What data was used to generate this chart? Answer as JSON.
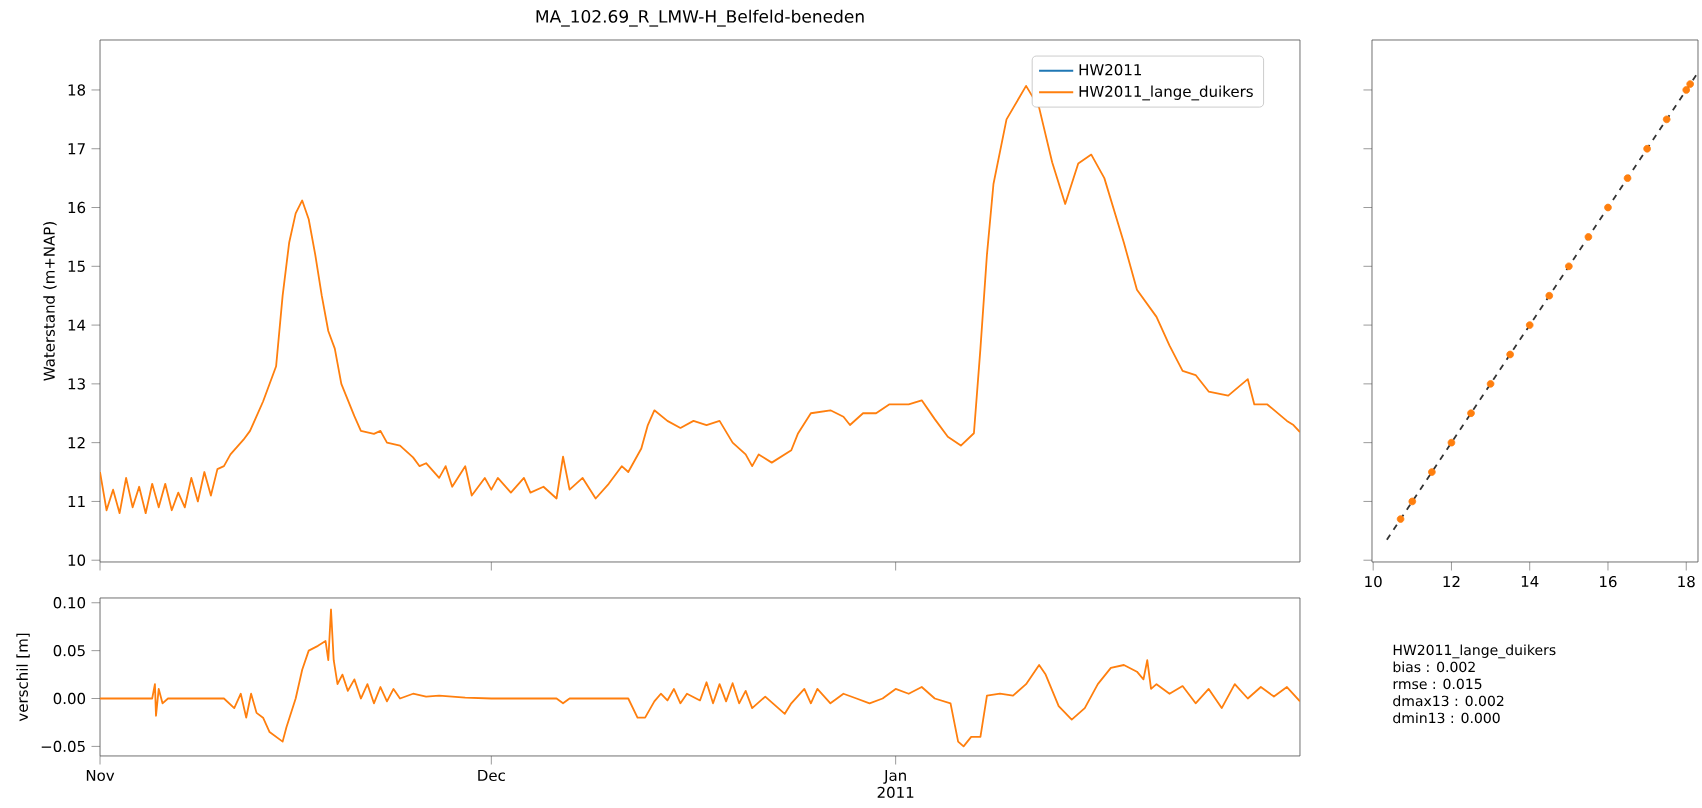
{
  "chart_data": [
    {
      "type": "line",
      "title": "MA_102.69_R_LMW-H_Belfeld-beneden",
      "ylabel": "Waterstand (m+NAP)",
      "legend": "top right",
      "tick_labels": "y",
      "xlim": [
        "2010-11-01",
        "2011-02-01"
      ],
      "ylim": [
        9.97,
        18.85
      ],
      "xticks": [
        {
          "value": "2010-11-01",
          "label": null
        },
        {
          "value": "2010-12-01",
          "label": null
        },
        {
          "value": "2011-01-01",
          "label": null
        }
      ],
      "yticks": [
        10,
        11,
        12,
        13,
        14,
        15,
        16,
        17,
        18
      ],
      "x": [
        "2010-11-01",
        "2010-11-01T12:00",
        "2010-11-02",
        "2010-11-02T12:00",
        "2010-11-03",
        "2010-11-03T12:00",
        "2010-11-04",
        "2010-11-04T12:00",
        "2010-11-05",
        "2010-11-05T12:00",
        "2010-11-06",
        "2010-11-06T12:00",
        "2010-11-07",
        "2010-11-07T12:00",
        "2010-11-08",
        "2010-11-08T12:00",
        "2010-11-09",
        "2010-11-09T12:00",
        "2010-11-10",
        "2010-11-10T12:00",
        "2010-11-11",
        "2010-11-12",
        "2010-11-12T12:00",
        "2010-11-13T12:00",
        "2010-11-14T12:00",
        "2010-11-15",
        "2010-11-15T12:00",
        "2010-11-16",
        "2010-11-16T12:00",
        "2010-11-17",
        "2010-11-17T12:00",
        "2010-11-18",
        "2010-11-18T12:00",
        "2010-11-19",
        "2010-11-19T12:00",
        "2010-11-20T12:00",
        "2010-11-21",
        "2010-11-22",
        "2010-11-22T12:00",
        "2010-11-23",
        "2010-11-24",
        "2010-11-25",
        "2010-11-25T12:00",
        "2010-11-26",
        "2010-11-27",
        "2010-11-27T12:00",
        "2010-11-28",
        "2010-11-29",
        "2010-11-29T12:00",
        "2010-11-30T12:00",
        "2010-12-01",
        "2010-12-01T12:00",
        "2010-12-02T12:00",
        "2010-12-03T12:00",
        "2010-12-04",
        "2010-12-05",
        "2010-12-06",
        "2010-12-06T12:00",
        "2010-12-07",
        "2010-12-08",
        "2010-12-09",
        "2010-12-10",
        "2010-12-11",
        "2010-12-11T12:00",
        "2010-12-12T12:00",
        "2010-12-13",
        "2010-12-13T12:00",
        "2010-12-14T12:00",
        "2010-12-15T12:00",
        "2010-12-16T12:00",
        "2010-12-17T12:00",
        "2010-12-18T12:00",
        "2010-12-19T12:00",
        "2010-12-20T12:00",
        "2010-12-21",
        "2010-12-21T12:00",
        "2010-12-22T12:00",
        "2010-12-24",
        "2010-12-24T12:00",
        "2010-12-25T12:00",
        "2010-12-27",
        "2010-12-28",
        "2010-12-28T12:00",
        "2010-12-29T12:00",
        "2010-12-30T12:00",
        "2010-12-31T12:00",
        "2011-01-02",
        "2011-01-03",
        "2011-01-04",
        "2011-01-05",
        "2011-01-06",
        "2011-01-07",
        "2011-01-07T12:00",
        "2011-01-08",
        "2011-01-08T12:00",
        "2011-01-09T12:00",
        "2011-01-11",
        "2011-01-12",
        "2011-01-13",
        "2011-01-14",
        "2011-01-15",
        "2011-01-16",
        "2011-01-17",
        "2011-01-18T12:00",
        "2011-01-19T12:00",
        "2011-01-21",
        "2011-01-22",
        "2011-01-23",
        "2011-01-24",
        "2011-01-25",
        "2011-01-26T12:00",
        "2011-01-28",
        "2011-01-28T12:00",
        "2011-01-29T12:00",
        "2011-01-31",
        "2011-01-31T12:00",
        "2011-02-01"
      ],
      "series": [
        {
          "name": "HW2011",
          "color": "#1f77b4",
          "values": [
            null,
            null,
            null,
            null,
            null,
            null,
            null,
            null,
            null,
            null,
            null,
            null,
            null,
            null,
            null,
            null,
            null,
            null,
            null,
            null,
            null,
            null,
            null,
            null,
            null,
            null,
            null,
            null,
            null,
            null,
            null,
            null,
            null,
            null,
            null,
            null,
            null,
            null,
            null,
            null,
            null,
            null,
            null,
            null,
            null,
            null,
            null,
            null,
            null,
            null,
            null,
            null,
            null,
            null,
            null,
            null,
            null,
            null,
            null,
            null,
            null,
            null,
            null,
            null,
            null,
            null,
            null,
            null,
            null,
            null,
            null,
            null,
            null,
            null,
            null,
            null,
            null,
            null,
            null,
            null,
            null,
            null,
            null,
            null,
            null,
            null,
            null,
            null,
            null,
            null,
            null,
            null,
            null,
            null,
            null,
            null,
            null,
            null,
            null,
            null,
            null,
            null,
            null,
            null,
            null,
            null,
            null,
            null,
            null,
            null,
            null,
            null,
            null,
            null,
            null,
            null,
            null
          ]
        },
        {
          "name": "HW2011_lange_duikers",
          "color": "#ff7f0e",
          "values": [
            11.5,
            10.85,
            11.2,
            10.8,
            11.4,
            10.9,
            11.25,
            10.8,
            11.3,
            10.9,
            11.3,
            10.85,
            11.15,
            10.9,
            11.4,
            11.0,
            11.5,
            11.1,
            11.55,
            11.6,
            11.8,
            12.05,
            12.2,
            12.7,
            13.3,
            14.5,
            15.4,
            15.9,
            16.12,
            15.8,
            15.2,
            14.5,
            13.9,
            13.6,
            13.0,
            12.45,
            12.2,
            12.15,
            12.2,
            12.0,
            11.95,
            11.75,
            11.6,
            11.65,
            11.4,
            11.6,
            11.25,
            11.6,
            11.1,
            11.4,
            11.2,
            11.4,
            11.15,
            11.4,
            11.15,
            11.25,
            11.05,
            11.76,
            11.2,
            11.4,
            11.05,
            11.3,
            11.6,
            11.5,
            11.9,
            12.3,
            12.55,
            12.37,
            12.25,
            12.37,
            12.3,
            12.37,
            12.0,
            11.8,
            11.6,
            11.8,
            11.66,
            11.87,
            12.15,
            12.5,
            12.55,
            12.44,
            12.3,
            12.5,
            12.5,
            12.65,
            12.65,
            12.72,
            12.4,
            12.1,
            11.95,
            12.16,
            13.6,
            15.2,
            16.4,
            17.5,
            18.07,
            17.7,
            16.77,
            16.06,
            16.75,
            16.9,
            16.5,
            15.4,
            14.6,
            14.14,
            13.65,
            13.22,
            13.15,
            12.87,
            12.8,
            13.08,
            12.65,
            12.65,
            12.37,
            12.3,
            12.18
          ]
        }
      ]
    },
    {
      "type": "line",
      "ylabel": "verschil [m]",
      "xlim": [
        "2010-11-01",
        "2011-02-01"
      ],
      "ylim": [
        -0.06,
        0.105
      ],
      "xticks": [
        {
          "value": "2010-11-01",
          "label": "Nov"
        },
        {
          "value": "2010-12-01",
          "label": "Dec"
        },
        {
          "value": "2011-01-01",
          "label": "Jan 2011"
        }
      ],
      "yticks": [
        {
          "value": -0.05,
          "label": "−0.05"
        },
        {
          "value": 0,
          "label": "0.00"
        },
        {
          "value": 0.05,
          "label": "0.05"
        },
        {
          "value": 0.1,
          "label": "0.10"
        }
      ],
      "x": [
        "2010-11-01",
        "2010-11-05",
        "2010-11-05T05:00",
        "2010-11-05T07:00",
        "2010-11-05T12:00",
        "2010-11-05T19:00",
        "2010-11-06T05:00",
        "2010-11-10T12:00",
        "2010-11-11T07:00",
        "2010-11-11T19:00",
        "2010-11-12T05:00",
        "2010-11-12T14:00",
        "2010-11-13",
        "2010-11-13T12:00",
        "2010-11-14",
        "2010-11-14T12:00",
        "2010-11-15",
        "2010-11-15T07:00",
        "2010-11-16",
        "2010-11-16T12:00",
        "2010-11-17",
        "2010-11-17T17:00",
        "2010-11-18T07:00",
        "2010-11-18T12:00",
        "2010-11-18T17:00",
        "2010-11-18T22:00",
        "2010-11-19T05:00",
        "2010-11-19T14:00",
        "2010-11-20",
        "2010-11-20T12:00",
        "2010-11-21",
        "2010-11-21T12:00",
        "2010-11-22",
        "2010-11-22T12:00",
        "2010-11-23",
        "2010-11-23T12:00",
        "2010-11-24",
        "2010-11-25",
        "2010-11-26",
        "2010-11-27",
        "2010-11-29",
        "2010-12-01",
        "2010-12-06",
        "2010-12-06T12:00",
        "2010-12-07",
        "2010-12-11T12:00",
        "2010-12-12T05:00",
        "2010-12-12T19:00",
        "2010-12-13T12:00",
        "2010-12-14",
        "2010-12-14T12:00",
        "2010-12-15",
        "2010-12-15T12:00",
        "2010-12-16",
        "2010-12-17",
        "2010-12-17T12:00",
        "2010-12-18",
        "2010-12-18T12:00",
        "2010-12-19",
        "2010-12-19T12:00",
        "2010-12-20",
        "2010-12-20T12:00",
        "2010-12-21",
        "2010-12-22",
        "2010-12-23",
        "2010-12-23T12:00",
        "2010-12-24",
        "2010-12-25",
        "2010-12-25T12:00",
        "2010-12-26",
        "2010-12-27",
        "2010-12-28",
        "2010-12-29",
        "2010-12-30",
        "2010-12-31",
        "2011-01-01",
        "2011-01-02",
        "2011-01-03",
        "2011-01-04",
        "2011-01-05T05:00",
        "2011-01-05T19:00",
        "2011-01-06T05:00",
        "2011-01-06T19:00",
        "2011-01-07T12:00",
        "2011-01-08",
        "2011-01-09",
        "2011-01-10",
        "2011-01-11",
        "2011-01-12",
        "2011-01-12T12:00",
        "2011-01-13T12:00",
        "2011-01-14T12:00",
        "2011-01-15T12:00",
        "2011-01-16T12:00",
        "2011-01-17T12:00",
        "2011-01-18T12:00",
        "2011-01-19T12:00",
        "2011-01-20",
        "2011-01-20T07:00",
        "2011-01-20T14:00",
        "2011-01-21",
        "2011-01-22",
        "2011-01-23",
        "2011-01-24",
        "2011-01-25",
        "2011-01-26",
        "2011-01-27",
        "2011-01-28",
        "2011-01-29",
        "2011-01-30",
        "2011-01-31",
        "2011-02-01"
      ],
      "series": [
        {
          "color": "#ff7f0e",
          "values": [
            0,
            0,
            0.015,
            -0.018,
            0.01,
            -0.005,
            0,
            0,
            -0.01,
            0.005,
            -0.02,
            0.005,
            -0.015,
            -0.02,
            -0.035,
            -0.04,
            -0.045,
            -0.03,
            0.0,
            0.03,
            0.05,
            0.055,
            0.06,
            0.04,
            0.093,
            0.04,
            0.015,
            0.025,
            0.008,
            0.02,
            0.0,
            0.015,
            -0.005,
            0.012,
            -0.003,
            0.01,
            0.0,
            0.005,
            0.002,
            0.003,
            0.001,
            0.0,
            0.0,
            -0.005,
            0.0,
            0.0,
            -0.02,
            -0.02,
            -0.003,
            0.005,
            -0.002,
            0.01,
            -0.005,
            0.005,
            -0.002,
            0.017,
            -0.005,
            0.015,
            -0.003,
            0.016,
            -0.005,
            0.008,
            -0.01,
            0.002,
            -0.01,
            -0.016,
            -0.005,
            0.01,
            -0.005,
            0.01,
            -0.005,
            0.005,
            0.0,
            -0.005,
            0.0,
            0.01,
            0.005,
            0.012,
            0.0,
            -0.005,
            -0.045,
            -0.05,
            -0.04,
            -0.04,
            0.003,
            0.005,
            0.003,
            0.015,
            0.035,
            0.025,
            -0.008,
            -0.022,
            -0.01,
            0.015,
            0.032,
            0.035,
            0.028,
            0.02,
            0.04,
            0.01,
            0.015,
            0.005,
            0.013,
            -0.005,
            0.01,
            -0.01,
            0.015,
            0.0,
            0.012,
            0.002,
            0.012,
            -0.003
          ]
        }
      ]
    },
    {
      "type": "scatter",
      "tick_labels": "x",
      "xlim": [
        9.97,
        18.3
      ],
      "ylim": [
        9.97,
        18.85
      ],
      "xticks": [
        10,
        12,
        14,
        16,
        18
      ],
      "yticks": [
        {
          "value": 10,
          "label": null
        },
        {
          "value": 11,
          "label": null
        },
        {
          "value": 12,
          "label": null
        },
        {
          "value": 13,
          "label": null
        },
        {
          "value": 14,
          "label": null
        },
        {
          "value": 15,
          "label": null
        },
        {
          "value": 16,
          "label": null
        },
        {
          "value": 17,
          "label": null
        },
        {
          "value": 18,
          "label": null
        }
      ],
      "annotations": [
        "HW2011_lange_duikers",
        "bias : 0.002",
        "rmse : 0.015",
        "dmax13 : 0.002",
        "dmin13 : 0.000"
      ],
      "series": [
        {
          "type": "scatter",
          "color": "#ff7f0e",
          "x": [
            10.7,
            11.0,
            11.5,
            12.0,
            12.5,
            13.0,
            13.5,
            14.0,
            14.5,
            15.0,
            15.5,
            16.0,
            16.5,
            17.0,
            17.5,
            18.0,
            18.1
          ],
          "values": [
            10.7,
            11.0,
            11.5,
            12.0,
            12.5,
            13.0,
            13.5,
            14.0,
            14.5,
            15.0,
            15.5,
            16.0,
            16.5,
            17.0,
            17.5,
            18.0,
            18.1
          ]
        },
        {
          "type": "line",
          "color": "#333333",
          "line_style": "dashed",
          "x": [
            10.35,
            18.3
          ],
          "values": [
            10.35,
            18.3
          ]
        }
      ]
    }
  ]
}
